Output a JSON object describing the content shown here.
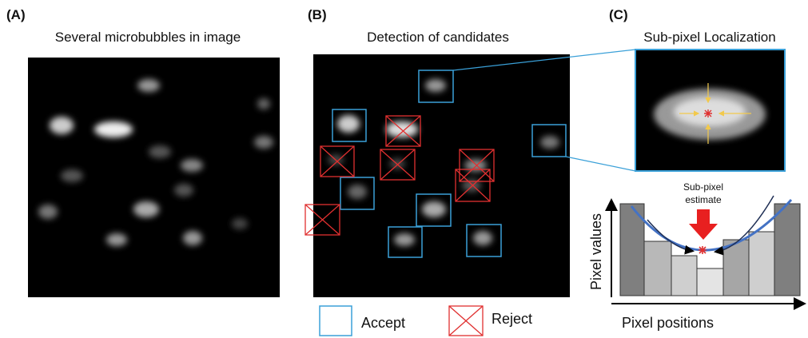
{
  "panels": [
    {
      "label": "(A)",
      "title": "Several microbubbles in image"
    },
    {
      "label": "(B)",
      "title": "Detection of candidates"
    },
    {
      "label": "(C)",
      "title": "Sub-pixel Localization"
    }
  ],
  "legend": {
    "accept": "Accept",
    "reject": "Reject"
  },
  "diagram": {
    "annotation": [
      "Sub-pixel",
      "estimate"
    ],
    "y_axis_label": "Pixel values",
    "x_axis_label": "Pixel positions"
  }
}
